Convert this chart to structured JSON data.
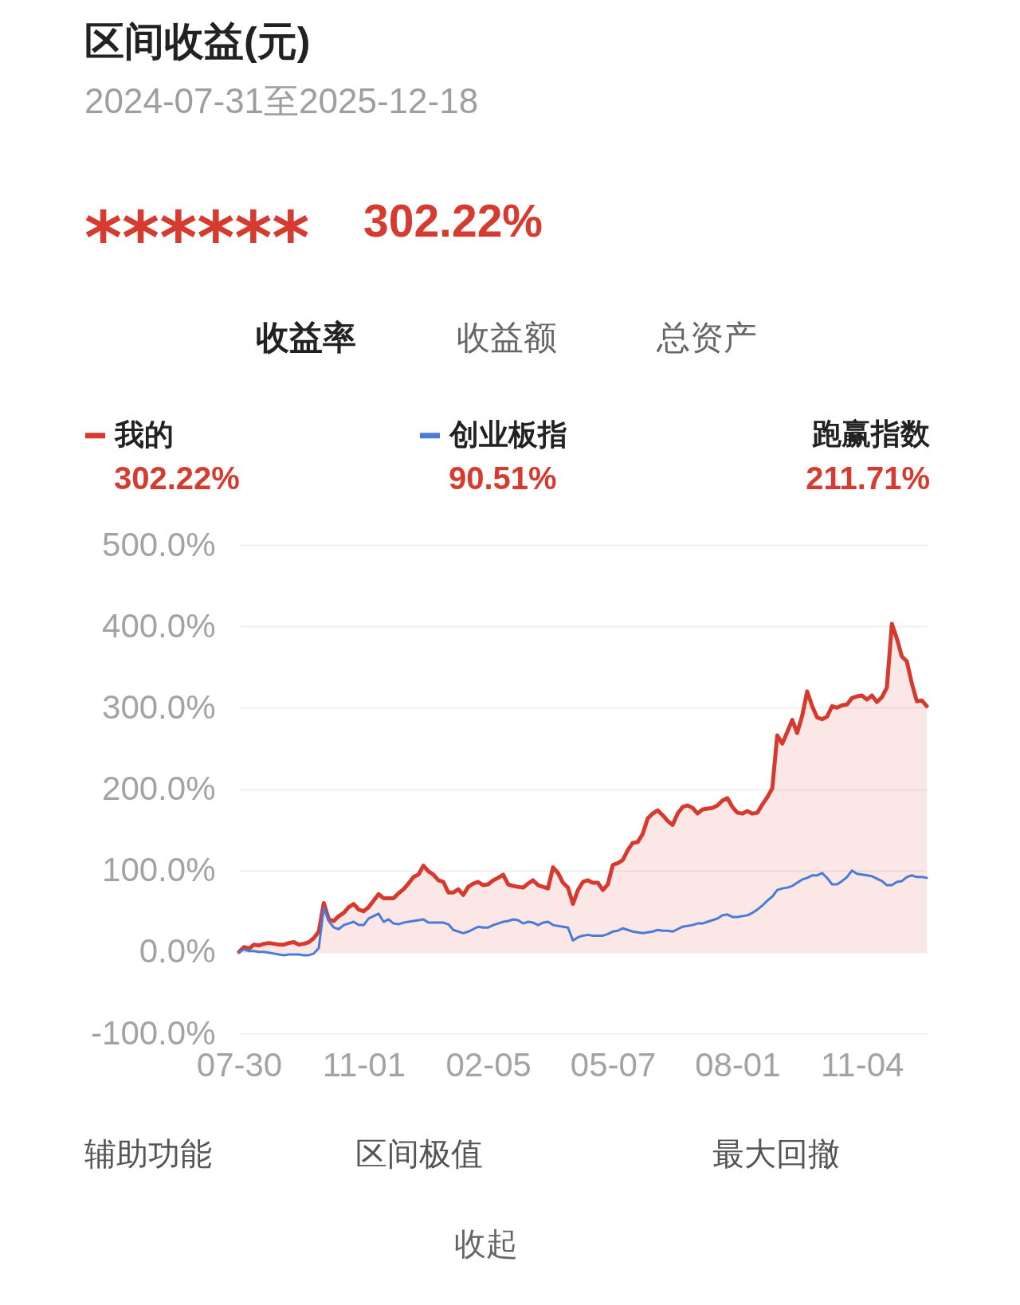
{
  "chart_data": {
    "type": "line",
    "title": "区间收益(元)",
    "subtitle": "2024-07-31至2025-12-18",
    "categories": [
      "07-30",
      null,
      null,
      null,
      null,
      null,
      null,
      null,
      null,
      null,
      null,
      null,
      null,
      null,
      null,
      null,
      null,
      null,
      null,
      null,
      null,
      null,
      null,
      null,
      null,
      "11-01",
      null,
      null,
      null,
      null,
      null,
      null,
      null,
      null,
      null,
      null,
      null,
      null,
      null,
      null,
      null,
      null,
      null,
      null,
      null,
      null,
      null,
      null,
      null,
      null,
      "02-05",
      null,
      null,
      null,
      null,
      null,
      null,
      null,
      null,
      null,
      null,
      null,
      null,
      null,
      null,
      null,
      null,
      null,
      null,
      null,
      null,
      null,
      null,
      null,
      null,
      "05-07",
      null,
      null,
      null,
      null,
      null,
      null,
      null,
      null,
      null,
      null,
      null,
      null,
      null,
      null,
      null,
      null,
      null,
      null,
      null,
      null,
      null,
      null,
      null,
      null,
      "08-01",
      null,
      null,
      null,
      null,
      null,
      null,
      null,
      null,
      null,
      null,
      null,
      null,
      null,
      null,
      null,
      null,
      null,
      null,
      null,
      null,
      null,
      null,
      null,
      null,
      "11-04",
      null,
      null,
      null,
      null,
      null,
      null,
      null,
      null,
      null,
      null,
      null,
      null,
      null
    ],
    "series": [
      {
        "name": "我的",
        "type": "area",
        "color": "#d63a2f",
        "values": [
          0,
          6,
          4,
          9,
          8,
          10,
          11,
          10,
          9,
          9,
          11,
          12,
          9,
          10,
          12,
          17,
          25,
          60,
          40,
          38,
          44,
          48,
          55,
          59,
          52,
          50,
          55,
          63,
          71,
          66,
          66,
          66,
          72,
          77,
          84,
          92,
          95,
          106,
          99,
          95,
          88,
          86,
          73,
          73,
          77,
          70,
          80,
          84,
          86,
          82,
          83,
          88,
          91,
          95,
          83,
          81,
          80,
          79,
          84,
          88,
          82,
          80,
          78,
          104,
          97,
          85,
          79,
          59,
          76,
          86,
          88,
          85,
          85,
          76,
          83,
          107,
          109,
          113,
          125,
          134,
          135,
          145,
          164,
          170,
          174,
          168,
          161,
          156,
          170,
          178,
          180,
          177,
          170,
          175,
          176,
          177,
          180,
          186,
          189,
          178,
          171,
          170,
          173,
          170,
          171,
          181,
          190,
          201,
          266,
          256,
          270,
          285,
          269,
          290,
          320,
          302,
          288,
          286,
          289,
          302,
          300,
          303,
          304,
          312,
          314,
          315,
          310,
          315,
          307,
          313,
          325,
          403,
          385,
          363,
          357,
          330,
          308,
          309,
          302
        ]
      },
      {
        "name": "创业板指",
        "color": "#4a7bd6",
        "values": [
          0,
          3,
          1,
          1,
          0,
          0,
          -1,
          -2,
          -3,
          -4,
          -3,
          -3,
          -3,
          -4,
          -4,
          -2,
          5,
          54,
          38,
          30,
          28,
          33,
          35,
          37,
          33,
          33,
          41,
          44,
          47,
          37,
          40,
          35,
          34,
          36,
          37,
          38,
          39,
          40,
          36,
          36,
          36,
          36,
          34,
          27,
          25,
          23,
          25,
          28,
          31,
          30,
          30,
          33,
          35,
          37,
          38,
          40,
          39,
          35,
          37,
          36,
          33,
          36,
          37,
          33,
          32,
          31,
          30,
          14,
          18,
          20,
          21,
          20,
          20,
          20,
          22,
          25,
          26,
          29,
          27,
          25,
          24,
          23,
          24,
          25,
          27,
          26,
          26,
          25,
          28,
          31,
          32,
          33,
          35,
          35,
          37,
          39,
          41,
          45,
          46,
          43,
          43,
          44,
          45,
          48,
          52,
          57,
          63,
          68,
          76,
          78,
          79,
          81,
          85,
          89,
          91,
          94,
          94,
          97,
          91,
          83,
          83,
          87,
          92,
          100,
          96,
          95,
          94,
          93,
          90,
          87,
          82,
          82,
          86,
          87,
          92,
          94,
          92,
          92,
          91
        ]
      }
    ],
    "ylim": [
      -100,
      500
    ],
    "yticks": [
      {
        "value": -100,
        "label": "-100.0%"
      },
      {
        "value": 0,
        "label": "0.0%"
      },
      {
        "value": 100,
        "label": "100.0%"
      },
      {
        "value": 200,
        "label": "200.0%"
      },
      {
        "value": 300,
        "label": "300.0%"
      },
      {
        "value": 400,
        "label": "400.0%"
      },
      {
        "value": 500,
        "label": "500.0%"
      }
    ],
    "grid": "y",
    "legend": "top",
    "annotations": [
      "******",
      "302.22%",
      "收益率",
      "收益额",
      "总资产",
      "302.22%",
      "90.51%",
      "跑赢指数",
      "211.71%",
      "辅助功能",
      "区间极值",
      "最大回撤",
      "收起"
    ]
  }
}
